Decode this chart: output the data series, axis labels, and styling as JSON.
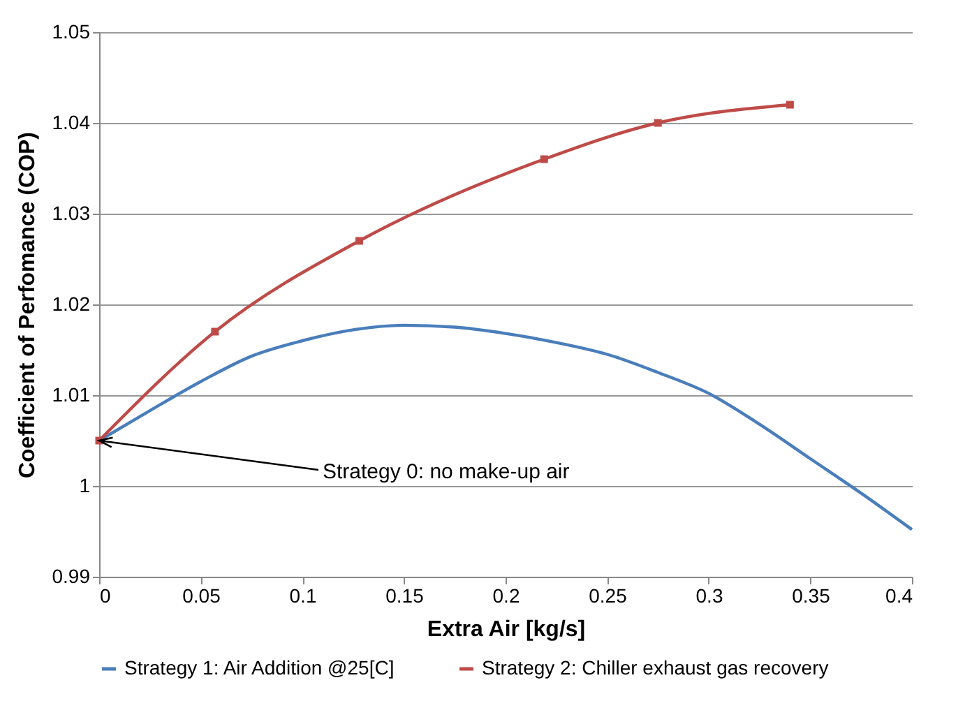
{
  "chart_data": {
    "type": "line",
    "xlabel": "Extra Air [kg/s]",
    "ylabel": "Coefficient of Perfomance (COP)",
    "xlim": [
      0,
      0.4
    ],
    "xticks": [
      0,
      0.05,
      0.1,
      0.15,
      0.2,
      0.25,
      0.3,
      0.35,
      0.4
    ],
    "ylim": [
      0.99,
      1.05
    ],
    "yticks": [
      0.99,
      1,
      1.01,
      1.02,
      1.03,
      1.04,
      1.05
    ],
    "grid": "y",
    "legend": "bottom",
    "line_style": "solid",
    "series": [
      {
        "name": "Strategy 1: Air Addition @25[C]",
        "color": "#4a7ebb",
        "marker": "none",
        "x": [
          0,
          0.025,
          0.05,
          0.075,
          0.1,
          0.125,
          0.15,
          0.175,
          0.2,
          0.225,
          0.25,
          0.275,
          0.3,
          0.325,
          0.35,
          0.375,
          0.4
        ],
        "values": [
          1.005,
          1.0083,
          1.0115,
          1.0143,
          1.016,
          1.0172,
          1.0177,
          1.0175,
          1.0168,
          1.0158,
          1.0145,
          1.0125,
          1.0102,
          1.0068,
          1.003,
          0.9992,
          0.9952
        ]
      },
      {
        "name": "Strategy 2: Chiller exhaust gas recovery",
        "color": "#be4b48",
        "marker": "square",
        "x": [
          0,
          0.057,
          0.128,
          0.219,
          0.275,
          0.34
        ],
        "values": [
          1.005,
          1.017,
          1.027,
          1.036,
          1.04,
          1.042
        ]
      }
    ],
    "annotations": [
      {
        "text": "Strategy 0: no make-up air",
        "x": 0,
        "y": 1.005
      }
    ]
  }
}
